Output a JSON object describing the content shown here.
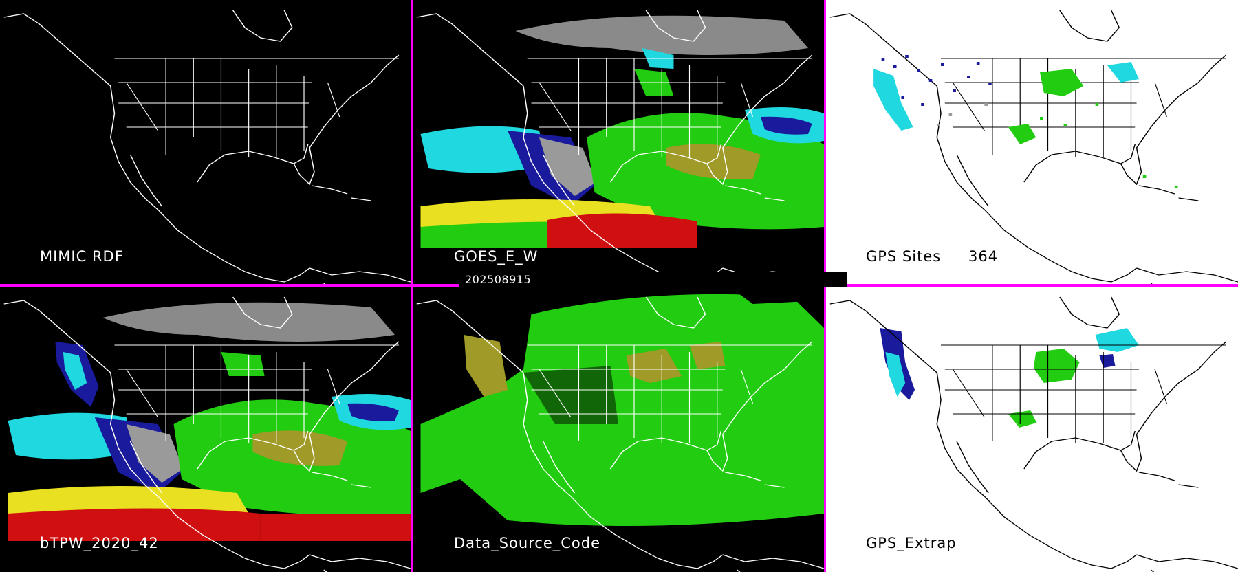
{
  "panels": [
    {
      "label": "MIMIC RDF"
    },
    {
      "label": "GOES_E_W"
    },
    {
      "label": "GPS Sites",
      "site_count": "364"
    },
    {
      "label": "bTPW_2020_42"
    },
    {
      "label": "Data_Source_Code"
    },
    {
      "label": "GPS_Extrap"
    }
  ],
  "timestamp": "202508915",
  "colors": {
    "divider": "#ff00ff",
    "dry_blue": "#1a1a9c",
    "cyan": "#20d8e0",
    "green": "#22cc11",
    "olive": "#a09a28",
    "yellow": "#e8e020",
    "red": "#d01010",
    "gray": "#9a9a9a"
  }
}
